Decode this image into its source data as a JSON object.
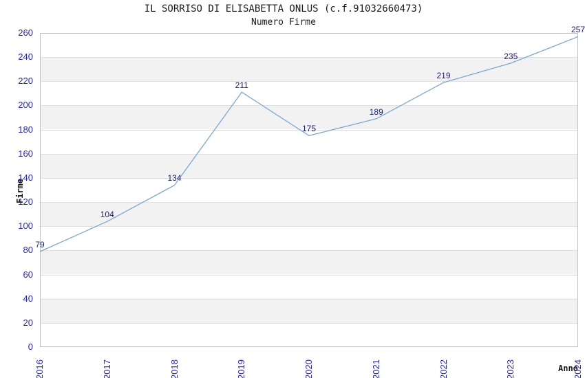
{
  "chart_data": {
    "type": "line",
    "title": "IL SORRISO DI ELISABETTA ONLUS (c.f.91032660473)",
    "subtitle": "Numero Firme",
    "xlabel": "Anno",
    "ylabel": "Firme",
    "categories": [
      "2016",
      "2017",
      "2018",
      "2019",
      "2020",
      "2021",
      "2022",
      "2023",
      "2024"
    ],
    "values": [
      79,
      104,
      134,
      211,
      175,
      189,
      219,
      235,
      257
    ],
    "ylim": [
      0,
      260
    ],
    "ytick_step": 20,
    "yticks": [
      0,
      20,
      40,
      60,
      80,
      100,
      120,
      140,
      160,
      180,
      200,
      220,
      240,
      260
    ],
    "legend": "none",
    "grid": "horizontal gridlines with alternating shaded bands",
    "colors": {
      "line": "#78a8dc",
      "tick_label": "#2222dd",
      "data_label": "#1a1a8c",
      "band_gray": "#f2f2f2",
      "band_white": "#ffffff",
      "gridline": "#e0e0e0",
      "plot_border": "#c0c0c0",
      "title_text": "#1a1a1a"
    }
  }
}
